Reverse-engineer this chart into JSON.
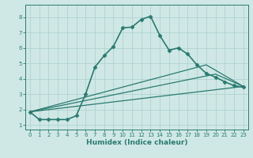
{
  "title": "",
  "xlabel": "Humidex (Indice chaleur)",
  "ylabel": "",
  "background_color": "#cfe8e5",
  "grid_color": "#aacfcc",
  "line_color": "#2a7a70",
  "xlim": [
    -0.5,
    23.5
  ],
  "ylim": [
    0.7,
    8.8
  ],
  "xticks": [
    0,
    1,
    2,
    3,
    4,
    5,
    6,
    7,
    8,
    9,
    10,
    11,
    12,
    13,
    14,
    15,
    16,
    17,
    18,
    19,
    20,
    21,
    22,
    23
  ],
  "yticks": [
    1,
    2,
    3,
    4,
    5,
    6,
    7,
    8
  ],
  "series": [
    {
      "x": [
        0,
        1,
        2,
        3,
        4,
        5,
        6,
        7,
        8,
        9,
        10,
        11,
        12,
        13,
        14,
        15,
        16,
        17,
        18,
        19,
        20,
        21,
        22,
        23
      ],
      "y": [
        1.85,
        1.35,
        1.35,
        1.35,
        1.35,
        1.6,
        3.0,
        4.75,
        5.5,
        6.1,
        7.3,
        7.35,
        7.85,
        8.05,
        6.8,
        5.85,
        6.0,
        5.6,
        4.9,
        4.35,
        4.1,
        3.8,
        3.55,
        3.45
      ],
      "marker": "D",
      "markersize": 2.5,
      "linewidth": 1.2,
      "linestyle": "-"
    },
    {
      "x": [
        0,
        19,
        23
      ],
      "y": [
        1.85,
        4.9,
        3.5
      ],
      "marker": null,
      "markersize": 0,
      "linewidth": 0.9,
      "linestyle": "-"
    },
    {
      "x": [
        0,
        20,
        23
      ],
      "y": [
        1.85,
        4.3,
        3.5
      ],
      "marker": null,
      "markersize": 0,
      "linewidth": 0.9,
      "linestyle": "-"
    },
    {
      "x": [
        0,
        23
      ],
      "y": [
        1.85,
        3.5
      ],
      "marker": null,
      "markersize": 0,
      "linewidth": 0.9,
      "linestyle": "-"
    }
  ]
}
